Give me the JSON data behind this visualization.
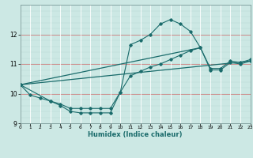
{
  "xlabel": "Humidex (Indice chaleur)",
  "bg_color": "#cce8e4",
  "line_color": "#1a6b6b",
  "grid_major_color": "#ffffff",
  "grid_minor_color": "#b8d8d4",
  "grid_red_color": "#e8b0b0",
  "xlim": [
    0,
    23
  ],
  "ylim": [
    9,
    13
  ],
  "xticks": [
    0,
    1,
    2,
    3,
    4,
    5,
    6,
    7,
    8,
    9,
    10,
    11,
    12,
    13,
    14,
    15,
    16,
    17,
    18,
    19,
    20,
    21,
    22,
    23
  ],
  "yticks": [
    9,
    10,
    11,
    12
  ],
  "series1_x": [
    0,
    1,
    2,
    3,
    4,
    5,
    6,
    7,
    8,
    9,
    10,
    11,
    12,
    13,
    14,
    15,
    16,
    17,
    18,
    19,
    20,
    21,
    22,
    23
  ],
  "series1_y": [
    10.3,
    9.95,
    9.85,
    9.75,
    9.65,
    9.5,
    9.5,
    9.5,
    9.5,
    9.5,
    10.05,
    11.65,
    11.8,
    12.0,
    12.35,
    12.5,
    12.35,
    12.1,
    11.55,
    10.85,
    10.85,
    11.1,
    11.05,
    11.15
  ],
  "series2_x": [
    0,
    3,
    4,
    5,
    6,
    7,
    8,
    9,
    10,
    11,
    12,
    13,
    14,
    15,
    16,
    17,
    18,
    19,
    20,
    21,
    22,
    23
  ],
  "series2_y": [
    10.3,
    9.75,
    9.6,
    9.4,
    9.35,
    9.35,
    9.35,
    9.35,
    10.05,
    10.6,
    10.75,
    10.9,
    11.0,
    11.15,
    11.3,
    11.45,
    11.55,
    10.8,
    10.8,
    11.05,
    11.0,
    11.1
  ],
  "series3_x": [
    0,
    23
  ],
  "series3_y": [
    10.3,
    11.1
  ],
  "series4_x": [
    0,
    18
  ],
  "series4_y": [
    10.3,
    11.55
  ],
  "marker_size": 1.8
}
